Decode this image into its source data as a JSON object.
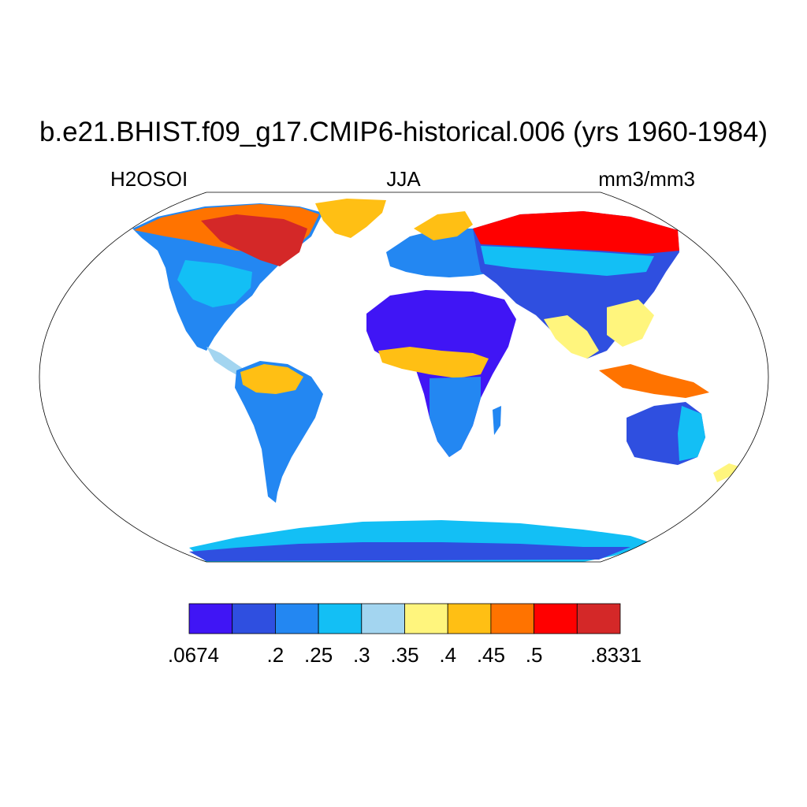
{
  "title": "b.e21.BHIST.f09_g17.CMIP6-historical.006 (yrs 1960-1984)",
  "subtitle_left": "H2OSOI",
  "subtitle_center": "JJA",
  "subtitle_right": "mm3/mm3",
  "colorbar": {
    "colors": [
      "#4015f5",
      "#2f4fe0",
      "#2387f2",
      "#13bff5",
      "#a3d5f0",
      "#fff57d",
      "#ffbf14",
      "#ff7300",
      "#ff0000",
      "#d42828"
    ],
    "labels": [
      ".0674",
      ".2",
      ".25",
      ".3",
      ".35",
      ".4",
      ".45",
      ".5",
      ".8331"
    ]
  },
  "ocean_color": "#ffffff"
}
